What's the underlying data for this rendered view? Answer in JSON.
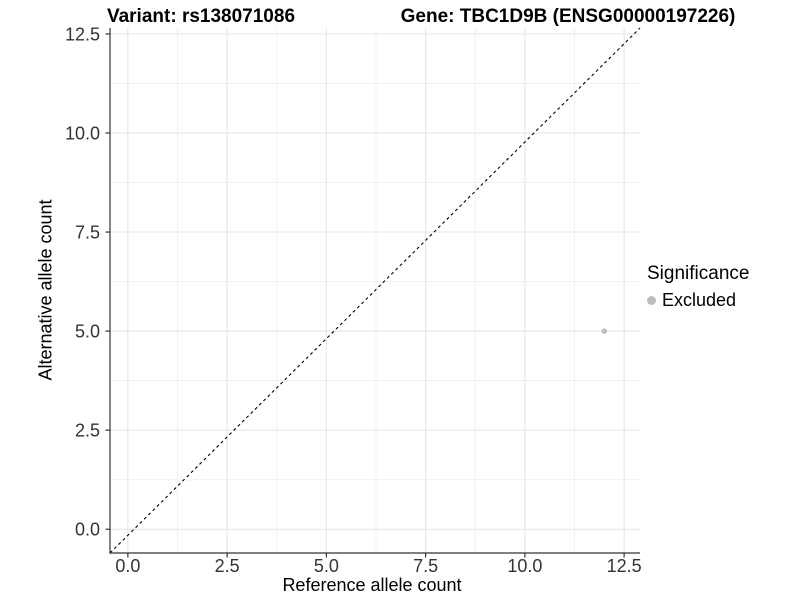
{
  "chart_data": {
    "type": "scatter",
    "title_left": "Variant: rs138071086",
    "title_right": "Gene: TBC1D9B (ENSG00000197226)",
    "xlabel": "Reference allele count",
    "ylabel": "Alternative allele count",
    "xlim": [
      -0.45,
      12.9
    ],
    "ylim": [
      -0.6,
      12.65
    ],
    "x_ticks": {
      "values": [
        0,
        2.5,
        5,
        7.5,
        10,
        12.5
      ],
      "labels": [
        "0.0",
        "2.5",
        "5.0",
        "7.5",
        "10.0",
        "12.5"
      ]
    },
    "y_ticks": {
      "values": [
        0,
        2.5,
        5,
        7.5,
        10,
        12.5
      ],
      "labels": [
        "0.0",
        "2.5",
        "5.0",
        "7.5",
        "10.0",
        "12.5"
      ]
    },
    "x_minor_ticks": [
      1.25,
      3.75,
      6.25,
      8.75,
      11.25
    ],
    "y_minor_ticks": [
      1.25,
      3.75,
      6.25,
      8.75,
      11.25
    ],
    "grid": true,
    "series": [
      {
        "name": "Excluded",
        "color": "#bdbdbd",
        "point_radius": 2.8,
        "points": [
          {
            "x": 12,
            "y": 5
          }
        ]
      }
    ],
    "reference_line": {
      "kind": "identity",
      "equation": "y = x",
      "style": "dashed",
      "color": "#000000"
    },
    "legend": {
      "title": "Significance",
      "position": "right",
      "entries": [
        {
          "label": "Excluded",
          "color": "#bdbdbd"
        }
      ]
    },
    "colors": {
      "background": "#ffffff",
      "grid_major": "#e4e4e4",
      "grid_minor": "#f0f0f0",
      "axis_line": "#333333",
      "tick_label": "#333333",
      "title": "#000000"
    }
  }
}
